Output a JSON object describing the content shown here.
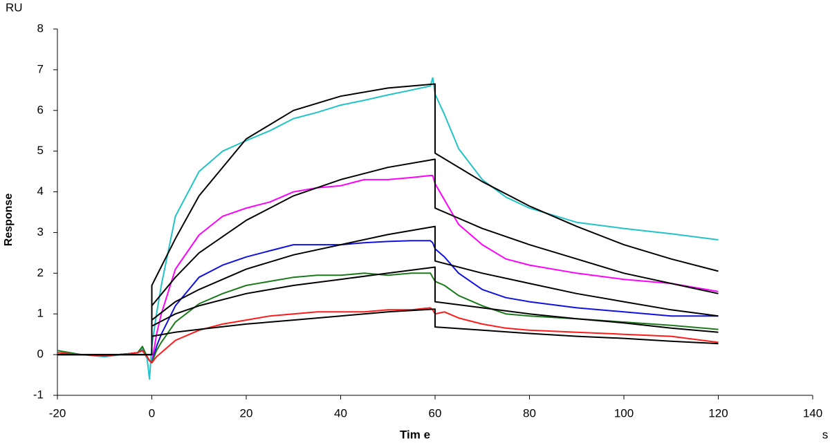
{
  "chart_data": {
    "type": "line",
    "y_unit": "RU",
    "ylabel": "Response",
    "xlabel": "Tim e",
    "x_unit": "s",
    "xlim": [
      -20,
      140
    ],
    "xticks": [
      -20,
      0,
      20,
      40,
      60,
      80,
      100,
      120,
      140
    ],
    "ylim": [
      -1,
      8
    ],
    "yticks": [
      -1,
      0,
      1,
      2,
      3,
      4,
      5,
      6,
      7,
      8
    ],
    "x": [
      -20,
      -15,
      -10,
      -5,
      -3,
      -2,
      -1,
      -0.5,
      0,
      1,
      2,
      5,
      10,
      15,
      20,
      25,
      30,
      35,
      40,
      45,
      50,
      55,
      59,
      59.5,
      60,
      62,
      65,
      70,
      75,
      80,
      90,
      100,
      110,
      120
    ],
    "series": [
      {
        "color": "#1fc3c8",
        "values": [
          0.1,
          0,
          -0.05,
          0.02,
          0.05,
          0.15,
          -0.1,
          -0.6,
          0.2,
          1.0,
          1.7,
          3.4,
          4.5,
          5.0,
          5.26,
          5.5,
          5.8,
          5.95,
          6.13,
          6.25,
          6.38,
          6.5,
          6.6,
          6.8,
          6.4,
          5.9,
          5.06,
          4.3,
          3.87,
          3.6,
          3.25,
          3.1,
          2.97,
          2.82
        ]
      },
      {
        "color": "#ff00ff",
        "values": [
          0.05,
          0,
          -0.03,
          0.02,
          0.05,
          0.1,
          -0.05,
          -0.15,
          -0.2,
          0.5,
          1.0,
          2.1,
          2.94,
          3.4,
          3.6,
          3.75,
          4.0,
          4.1,
          4.15,
          4.3,
          4.3,
          4.35,
          4.4,
          4.4,
          4.2,
          3.8,
          3.2,
          2.7,
          2.35,
          2.2,
          2.0,
          1.85,
          1.75,
          1.55
        ]
      },
      {
        "color": "#1010e0",
        "values": [
          0.05,
          0,
          -0.03,
          0.02,
          0.05,
          0.1,
          -0.05,
          -0.15,
          -0.2,
          0.2,
          0.5,
          1.2,
          1.9,
          2.2,
          2.4,
          2.55,
          2.7,
          2.7,
          2.7,
          2.75,
          2.78,
          2.8,
          2.8,
          2.75,
          2.6,
          2.4,
          2.0,
          1.6,
          1.4,
          1.3,
          1.15,
          1.05,
          0.95,
          0.95
        ]
      },
      {
        "color": "#1a7a1a",
        "values": [
          0.1,
          0,
          -0.03,
          0.02,
          0.05,
          0.2,
          -0.05,
          -0.15,
          -0.2,
          0.1,
          0.3,
          0.8,
          1.25,
          1.5,
          1.7,
          1.8,
          1.9,
          1.95,
          1.95,
          2.0,
          1.95,
          2.0,
          2.0,
          1.9,
          1.8,
          1.7,
          1.45,
          1.2,
          1.0,
          0.95,
          0.88,
          0.8,
          0.72,
          0.62
        ]
      },
      {
        "color": "#ff1a1a",
        "values": [
          0.05,
          0,
          -0.03,
          0.02,
          0.05,
          0.1,
          -0.05,
          -0.15,
          -0.2,
          -0.05,
          0.05,
          0.35,
          0.6,
          0.75,
          0.85,
          0.95,
          1.0,
          1.05,
          1.05,
          1.05,
          1.1,
          1.1,
          1.15,
          1.1,
          1.0,
          1.05,
          0.9,
          0.75,
          0.65,
          0.6,
          0.55,
          0.5,
          0.45,
          0.3
        ]
      },
      {
        "color": "#000000",
        "x": [
          -20,
          0,
          0,
          5,
          10,
          20,
          30,
          40,
          50,
          60,
          60,
          70,
          80,
          90,
          100,
          110,
          120
        ],
        "values": [
          0,
          0,
          1.7,
          2.85,
          3.9,
          5.3,
          6.0,
          6.35,
          6.55,
          6.65,
          4.95,
          4.25,
          3.65,
          3.15,
          2.7,
          2.35,
          2.05
        ]
      },
      {
        "color": "#000000",
        "x": [
          -20,
          0,
          0,
          5,
          10,
          20,
          30,
          40,
          50,
          60,
          60,
          70,
          80,
          90,
          100,
          110,
          120
        ],
        "values": [
          0,
          0,
          1.2,
          1.9,
          2.5,
          3.3,
          3.9,
          4.3,
          4.6,
          4.8,
          3.6,
          3.1,
          2.7,
          2.35,
          2.0,
          1.75,
          1.5
        ]
      },
      {
        "color": "#000000",
        "x": [
          -20,
          0,
          0,
          5,
          10,
          20,
          30,
          40,
          50,
          60,
          60,
          70,
          80,
          90,
          100,
          110,
          120
        ],
        "values": [
          0,
          0,
          0.85,
          1.3,
          1.6,
          2.1,
          2.45,
          2.7,
          2.95,
          3.15,
          2.3,
          2.0,
          1.75,
          1.5,
          1.3,
          1.1,
          0.95
        ]
      },
      {
        "color": "#000000",
        "x": [
          -20,
          0,
          0,
          5,
          10,
          20,
          30,
          40,
          50,
          60,
          60,
          70,
          80,
          90,
          100,
          110,
          120
        ],
        "values": [
          0,
          0,
          0.7,
          1.0,
          1.2,
          1.5,
          1.7,
          1.85,
          2.0,
          2.15,
          1.3,
          1.15,
          1.0,
          0.88,
          0.78,
          0.65,
          0.55
        ]
      },
      {
        "color": "#000000",
        "x": [
          -20,
          0,
          0,
          5,
          10,
          20,
          30,
          40,
          50,
          60,
          60,
          70,
          80,
          90,
          100,
          110,
          120
        ],
        "values": [
          0,
          0,
          0.45,
          0.55,
          0.62,
          0.75,
          0.85,
          0.95,
          1.05,
          1.12,
          0.68,
          0.6,
          0.52,
          0.45,
          0.4,
          0.33,
          0.27
        ]
      }
    ]
  }
}
